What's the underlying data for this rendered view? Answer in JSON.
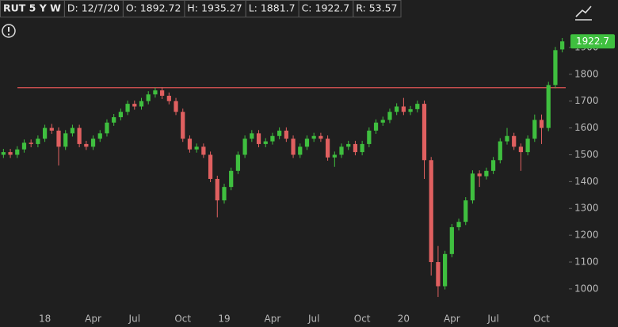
{
  "chart_data": {
    "type": "candlestick",
    "header": [
      "RUT 5 Y W",
      "D: 12/7/20",
      "O: 1892.72",
      "H: 1935.27",
      "L: 1881.7",
      "C: 1922.7",
      "R: 53.57"
    ],
    "categories": [
      null,
      null,
      null,
      null,
      null,
      null,
      "18",
      null,
      null,
      null,
      null,
      null,
      null,
      "Apr",
      null,
      null,
      null,
      null,
      null,
      "Jul",
      null,
      null,
      null,
      null,
      null,
      null,
      "Oct",
      null,
      null,
      null,
      null,
      null,
      "19",
      null,
      null,
      null,
      null,
      null,
      null,
      "Apr",
      null,
      null,
      null,
      null,
      null,
      "Jul",
      null,
      null,
      null,
      null,
      null,
      null,
      "Oct",
      null,
      null,
      null,
      null,
      null,
      "20",
      null,
      null,
      null,
      null,
      null,
      null,
      "Apr",
      null,
      null,
      null,
      null,
      null,
      "Jul",
      null,
      null,
      null,
      null,
      null,
      null,
      "Oct",
      null,
      null,
      null
    ],
    "open": [
      1500,
      1510,
      1500,
      1520,
      1545,
      1540,
      1560,
      1600,
      1590,
      1530,
      1580,
      1600,
      1540,
      1530,
      1560,
      1580,
      1620,
      1640,
      1660,
      1690,
      1680,
      1700,
      1725,
      1740,
      1720,
      1700,
      1660,
      1560,
      1520,
      1530,
      1500,
      1410,
      1330,
      1380,
      1440,
      1500,
      1560,
      1580,
      1540,
      1550,
      1570,
      1590,
      1560,
      1500,
      1530,
      1560,
      1570,
      1560,
      1490,
      1500,
      1530,
      1540,
      1510,
      1540,
      1590,
      1620,
      1630,
      1660,
      1680,
      1660,
      1670,
      1690,
      1480,
      1100,
      1010,
      1130,
      1230,
      1250,
      1330,
      1430,
      1420,
      1440,
      1480,
      1550,
      1570,
      1530,
      1510,
      1560,
      1630,
      1600,
      1760,
      1892.72
    ],
    "high": [
      1522,
      1522,
      1532,
      1557,
      1557,
      1572,
      1612,
      1615,
      1602,
      1592,
      1612,
      1612,
      1552,
      1572,
      1592,
      1632,
      1652,
      1672,
      1702,
      1702,
      1712,
      1737,
      1750,
      1752,
      1732,
      1712,
      1672,
      1572,
      1542,
      1542,
      1512,
      1422,
      1392,
      1452,
      1512,
      1572,
      1592,
      1592,
      1562,
      1582,
      1602,
      1602,
      1572,
      1542,
      1572,
      1582,
      1582,
      1572,
      1512,
      1542,
      1552,
      1552,
      1552,
      1602,
      1632,
      1642,
      1672,
      1692,
      1712,
      1682,
      1702,
      1702,
      1492,
      1160,
      1142,
      1242,
      1262,
      1342,
      1442,
      1442,
      1452,
      1492,
      1562,
      1600,
      1582,
      1542,
      1572,
      1650,
      1650,
      1772,
      1902,
      1935.27
    ],
    "low": [
      1488,
      1488,
      1488,
      1508,
      1528,
      1528,
      1548,
      1578,
      1460,
      1518,
      1568,
      1528,
      1518,
      1518,
      1548,
      1568,
      1608,
      1628,
      1648,
      1668,
      1668,
      1688,
      1713,
      1708,
      1688,
      1648,
      1548,
      1508,
      1508,
      1488,
      1398,
      1267,
      1318,
      1368,
      1428,
      1488,
      1548,
      1528,
      1528,
      1538,
      1558,
      1548,
      1488,
      1488,
      1518,
      1548,
      1548,
      1478,
      1455,
      1488,
      1518,
      1498,
      1498,
      1528,
      1578,
      1608,
      1618,
      1648,
      1648,
      1648,
      1658,
      1410,
      1050,
      970,
      998,
      1118,
      1218,
      1238,
      1318,
      1380,
      1408,
      1428,
      1468,
      1538,
      1518,
      1440,
      1498,
      1548,
      1540,
      1588,
      1748,
      1881.7
    ],
    "close": [
      1510,
      1500,
      1520,
      1545,
      1540,
      1560,
      1600,
      1590,
      1530,
      1580,
      1600,
      1540,
      1530,
      1560,
      1580,
      1620,
      1640,
      1660,
      1690,
      1680,
      1700,
      1725,
      1740,
      1720,
      1700,
      1660,
      1560,
      1520,
      1530,
      1500,
      1410,
      1330,
      1380,
      1440,
      1500,
      1560,
      1580,
      1540,
      1550,
      1570,
      1590,
      1560,
      1500,
      1530,
      1560,
      1570,
      1560,
      1490,
      1500,
      1530,
      1540,
      1510,
      1540,
      1590,
      1620,
      1630,
      1660,
      1680,
      1660,
      1670,
      1690,
      1480,
      1100,
      1010,
      1130,
      1230,
      1250,
      1330,
      1430,
      1420,
      1440,
      1480,
      1550,
      1570,
      1530,
      1510,
      1560,
      1630,
      1600,
      1760,
      1890,
      1922.7
    ],
    "up_color": "#3fbf3f",
    "down_color": "#e06060",
    "hline": {
      "value": 1750,
      "color": "#e05555"
    },
    "ylim": [
      920,
      2012
    ],
    "yticks": [
      1000,
      1100,
      1200,
      1300,
      1400,
      1500,
      1600,
      1700,
      1800,
      1900
    ],
    "grid": false
  }
}
